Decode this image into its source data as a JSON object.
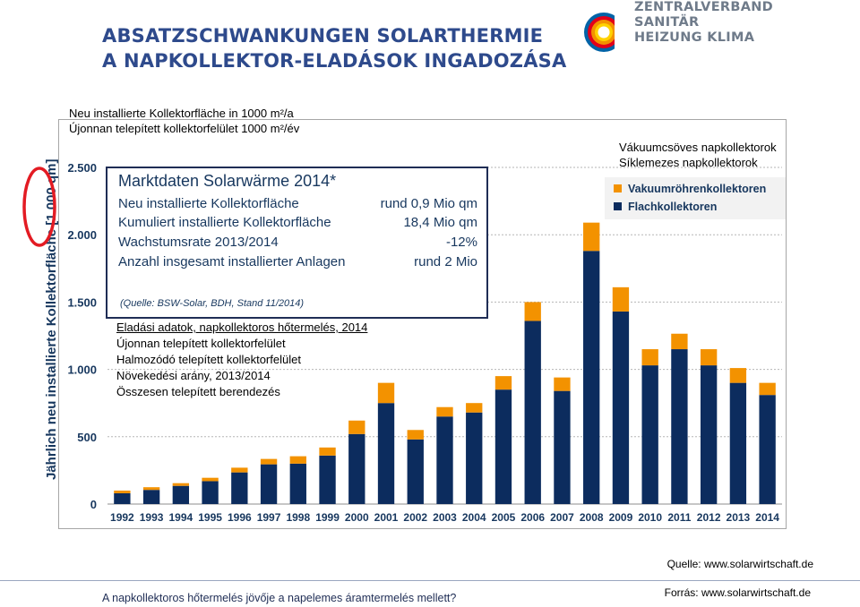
{
  "header": {
    "title_line1": "ABSATZSCHWANKUNGEN SOLARTHERMIE",
    "title_line2": "A NAPKOLLEKTOR-ELADÁSOK INGADOZÁSA"
  },
  "logo": {
    "line1": "ZENTRALVERBAND",
    "line2": "SANITÄR",
    "line3": "HEIZUNG KLIMA",
    "icon": "zvshk-sun-logo-icon",
    "colors": [
      "#f39200",
      "#e2001a",
      "#0063a7",
      "#ffd200"
    ]
  },
  "overlay": {
    "unit_de": "Neu installierte Kollektorfläche in 1000 m²/a",
    "unit_hu": "Újonnan telepített kollektorfelület 1000 m²/év",
    "legend_hu_1": "Vákuumcsöves napkollektorok",
    "legend_hu_2": "Síklemezes napkollektorok",
    "inset_hu_title": "Eladási adatok, napkollektoros hőtermelés, 2014",
    "inset_hu_1": "Újonnan telepített kollektorfelület",
    "inset_hu_2": "Halmozódó telepített kollektorfelület",
    "inset_hu_3": "Növekedési arány, 2013/2014",
    "inset_hu_4": "Összesen telepített berendezés"
  },
  "inset": {
    "title": "Marktdaten Solarwärme 2014*",
    "rows": [
      {
        "label": "Neu installierte Kollektorfläche",
        "value": "rund 0,9 Mio qm"
      },
      {
        "label": "Kumuliert installierte Kollektorfläche",
        "value": "18,4 Mio qm"
      },
      {
        "label": "Wachstumsrate 2013/2014",
        "value": "-12%"
      },
      {
        "label": "Anzahl insgesamt installierter Anlagen",
        "value": "rund 2 Mio"
      }
    ],
    "source": "(Quelle: BSW-Solar, BDH, Stand 11/2014)"
  },
  "chart_data": {
    "type": "bar",
    "stacked": true,
    "categories": [
      "1992",
      "1993",
      "1994",
      "1995",
      "1996",
      "1997",
      "1998",
      "1999",
      "2000",
      "2001",
      "2002",
      "2003",
      "2004",
      "2005",
      "2006",
      "2007",
      "2008",
      "2009",
      "2010",
      "2011",
      "2012",
      "2013",
      "2014"
    ],
    "series": [
      {
        "name": "Flachkollektoren",
        "color": "#0c2c5e",
        "values": [
          80,
          105,
          135,
          170,
          235,
          295,
          300,
          360,
          520,
          750,
          480,
          650,
          680,
          850,
          1360,
          840,
          1880,
          1430,
          1030,
          1150,
          1030,
          900,
          810
        ]
      },
      {
        "name": "Vakuumröhrenkollektoren",
        "color": "#f39200",
        "values": [
          20,
          20,
          20,
          25,
          35,
          40,
          55,
          60,
          100,
          150,
          70,
          70,
          70,
          100,
          140,
          100,
          210,
          180,
          120,
          115,
          120,
          110,
          90
        ]
      }
    ],
    "ylabel": "Jährlich neu installierte Kollektorfläche [1 000 qm]",
    "ylim": [
      0,
      2500
    ],
    "yticks": [
      0,
      500,
      1000,
      1500,
      2000,
      2500
    ],
    "ytick_labels": [
      "0",
      "500",
      "1.000",
      "1.500",
      "2.000",
      "2.500"
    ],
    "grid": true,
    "legend_position": "top-right",
    "source": "Quelle: www.solarwirtschaft.de"
  },
  "footer": {
    "question": "A napkollektoros hőtermelés jövője a napelemes áramtermelés mellett?",
    "source": "Forrás: www.solarwirtschaft.de"
  }
}
